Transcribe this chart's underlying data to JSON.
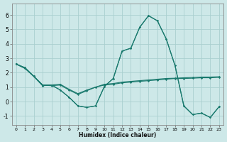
{
  "xlabel": "Humidex (Indice chaleur)",
  "xlim": [
    -0.5,
    23.5
  ],
  "ylim": [
    -1.6,
    6.8
  ],
  "yticks": [
    -1,
    0,
    1,
    2,
    3,
    4,
    5,
    6
  ],
  "xticks": [
    0,
    1,
    2,
    3,
    4,
    5,
    6,
    7,
    8,
    9,
    10,
    11,
    12,
    13,
    14,
    15,
    16,
    17,
    18,
    19,
    20,
    21,
    22,
    23
  ],
  "bg_color": "#cde8e8",
  "grid_color": "#aacfcf",
  "line_color": "#1a7a6e",
  "lines": [
    [
      2.6,
      2.35,
      1.75,
      1.15,
      1.1,
      1.15,
      0.8,
      0.5,
      0.75,
      1.0,
      1.15,
      1.2,
      1.3,
      1.35,
      1.4,
      1.45,
      1.5,
      1.55,
      1.6,
      1.6,
      1.62,
      1.65,
      1.65,
      1.68
    ],
    [
      2.6,
      2.35,
      1.75,
      1.15,
      1.15,
      1.2,
      0.85,
      0.55,
      0.8,
      1.0,
      1.2,
      1.25,
      1.35,
      1.4,
      1.45,
      1.5,
      1.55,
      1.6,
      1.62,
      1.65,
      1.67,
      1.7,
      1.7,
      1.72
    ],
    [
      2.6,
      2.3,
      1.75,
      1.1,
      1.15,
      0.8,
      0.3,
      -0.3,
      -0.4,
      -0.3,
      1.05,
      1.6,
      3.5,
      3.7,
      5.15,
      5.95,
      5.6,
      4.35,
      2.5,
      -0.3,
      -0.9,
      -0.8,
      -1.1,
      -0.35
    ],
    [
      2.6,
      2.3,
      1.75,
      1.1,
      1.15,
      0.8,
      0.3,
      -0.3,
      -0.4,
      -0.3,
      1.05,
      1.6,
      3.5,
      3.7,
      5.15,
      5.95,
      5.6,
      4.35,
      2.5,
      -0.3,
      -0.9,
      -0.8,
      -1.1,
      -0.35
    ]
  ]
}
